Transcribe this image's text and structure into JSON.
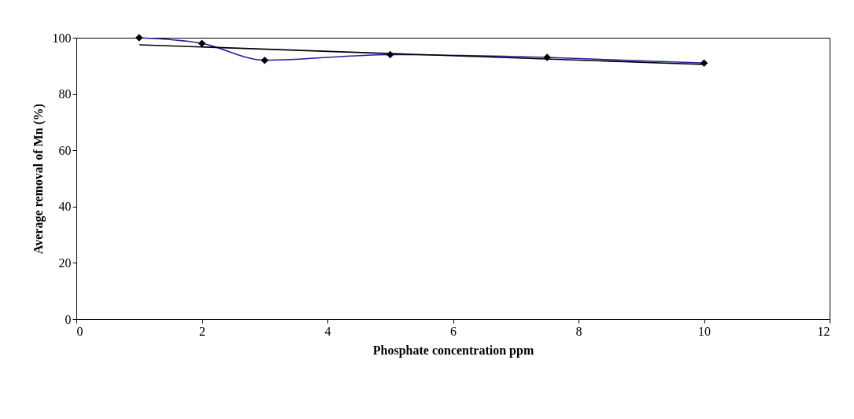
{
  "chart_data": {
    "type": "line",
    "xlabel": "Phosphate concentration ppm",
    "ylabel": "Average removal of Mn (%)",
    "x": [
      1,
      2,
      3,
      5,
      7.5,
      10
    ],
    "series": [
      {
        "color": "#1f1f9c",
        "values": [
          100,
          98,
          92,
          94,
          93,
          91
        ],
        "marker": "diamond"
      },
      {
        "type": "line",
        "color": "#000000",
        "x": [
          1,
          10
        ],
        "values": [
          97.5,
          90.5
        ],
        "marker": "none"
      }
    ],
    "xlim": [
      0,
      12
    ],
    "xticks": [
      0,
      2,
      4,
      6,
      8,
      10,
      12
    ],
    "ylim": [
      0,
      100
    ],
    "yticks": [
      0,
      20,
      40,
      60,
      80,
      100
    ],
    "grid": false
  }
}
